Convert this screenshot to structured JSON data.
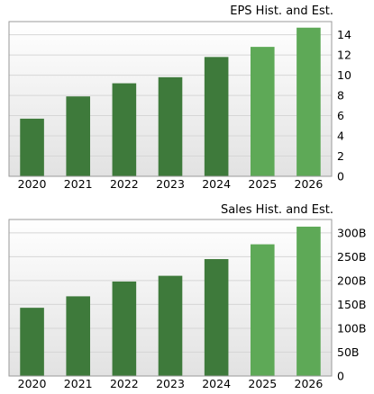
{
  "colors": {
    "actual": "#3e7a3b",
    "estimate": "#5ea957",
    "plot_bg_top": "#ffffff",
    "plot_bg_bottom": "#e2e2e2",
    "frame": "#9a9a9a",
    "grid": "#d6d6d6"
  },
  "chart_data": [
    {
      "type": "bar",
      "title": "EPS Hist. and Est.",
      "categories": [
        "2020",
        "2021",
        "2022",
        "2023",
        "2024",
        "2025",
        "2026"
      ],
      "values": [
        5.7,
        7.9,
        9.2,
        9.8,
        11.8,
        12.8,
        14.7
      ],
      "estimate_from_index": 5,
      "ylim": [
        0,
        15.3
      ],
      "yticks": [
        0,
        2,
        4,
        6,
        8,
        10,
        12,
        14
      ],
      "ytick_labels": [
        "0",
        "2",
        "4",
        "6",
        "8",
        "10",
        "12",
        "14"
      ],
      "grid": true,
      "y_axis_side": "right"
    },
    {
      "type": "bar",
      "title": "Sales Hist. and Est.",
      "categories": [
        "2020",
        "2021",
        "2022",
        "2023",
        "2024",
        "2025",
        "2026"
      ],
      "values": [
        143,
        167,
        198,
        210,
        245,
        276,
        313
      ],
      "estimate_from_index": 5,
      "ylim": [
        0,
        328
      ],
      "yticks": [
        0,
        50,
        100,
        150,
        200,
        250,
        300
      ],
      "ytick_labels": [
        "0",
        "50B",
        "100B",
        "150B",
        "200B",
        "250B",
        "300B"
      ],
      "grid": true,
      "y_axis_side": "right"
    }
  ]
}
